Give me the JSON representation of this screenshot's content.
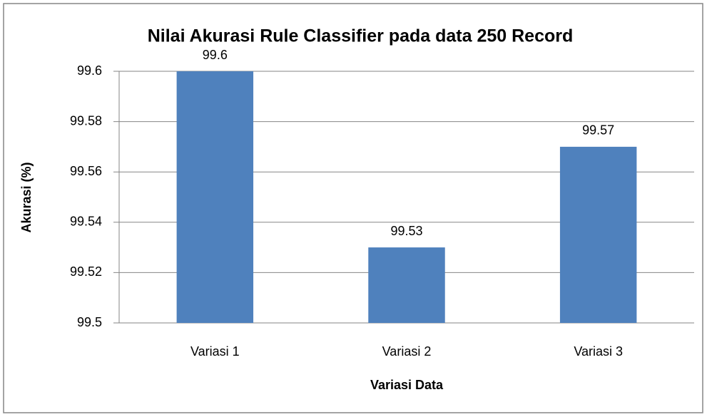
{
  "chart_data": {
    "type": "bar",
    "title": "Nilai Akurasi Rule Classifier pada data 250 Record",
    "x_label": "Variasi Data",
    "y_label": "Akurasi (%)",
    "categories": [
      "Variasi 1",
      "Variasi 2",
      "Variasi 3"
    ],
    "values": [
      99.6,
      99.53,
      99.57
    ],
    "color": "#4f81bd",
    "ylim": [
      99.5,
      99.6
    ],
    "yticks": [
      99.5,
      99.52,
      99.54,
      99.56,
      99.58,
      99.6
    ],
    "grid": true
  }
}
